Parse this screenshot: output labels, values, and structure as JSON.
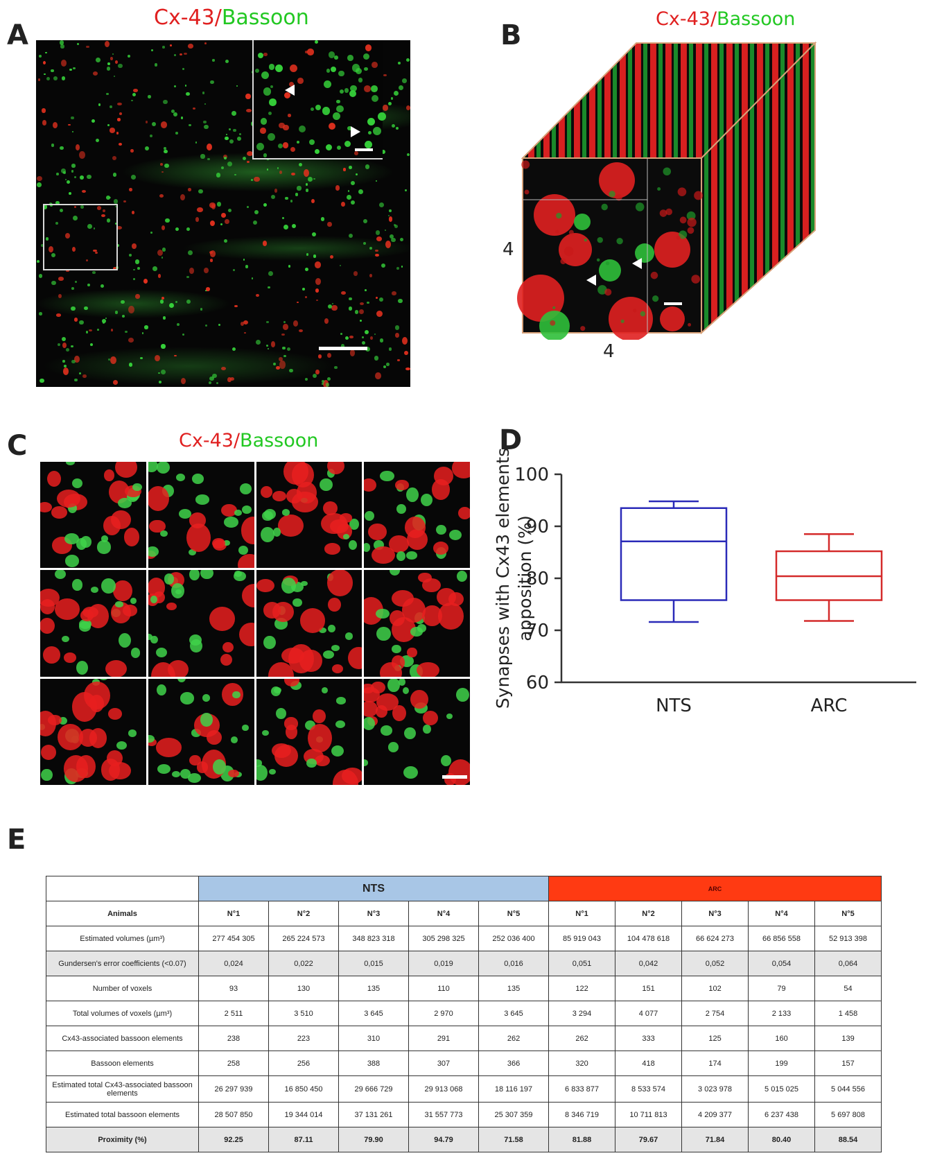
{
  "figure": {
    "panels": {
      "a": {
        "letter": "A",
        "stain_red": "Cx-43",
        "stain_sep": "/",
        "stain_green": "Bassoon"
      },
      "b": {
        "letter": "B",
        "stain_red": "Cx-43",
        "stain_sep": "/",
        "stain_green": "Bassoon",
        "dim_vertical": "4",
        "dim_horizontal": "4"
      },
      "c": {
        "letter": "C",
        "stain_red": "Cx-43",
        "stain_sep": "/",
        "stain_green": "Bassoon"
      },
      "d": {
        "letter": "D"
      },
      "e": {
        "letter": "E"
      }
    },
    "colors": {
      "red_channel": "#e02020",
      "green_channel": "#22c822",
      "nts": "#2a2ab8",
      "arc": "#d42a2a",
      "nts_header": "#a8c6e6",
      "arc_header": "#ff3a12"
    }
  },
  "chart_data": {
    "type": "boxplot",
    "ylabel": "Synapses with Cx43 elements apposition (%)",
    "ylabel_line1": "Synapses with Cx43 elements",
    "ylabel_line2": "apposition (%)",
    "ylim": [
      60,
      100
    ],
    "yticks": [
      "100",
      "90",
      "80",
      "70",
      "60"
    ],
    "categories": [
      "NTS",
      "ARC"
    ],
    "series": [
      {
        "name": "NTS",
        "min": 71.6,
        "q1": 75.8,
        "median": 87.1,
        "q3": 93.5,
        "max": 94.8,
        "color": "#2a2ab8"
      },
      {
        "name": "ARC",
        "min": 71.8,
        "q1": 75.8,
        "median": 80.4,
        "q3": 85.2,
        "max": 88.5,
        "color": "#d42a2a"
      }
    ]
  },
  "table": {
    "groups": [
      "NTS",
      "ARC"
    ],
    "header_label": "Animals",
    "columns": [
      "N°1",
      "N°2",
      "N°3",
      "N°4",
      "N°5",
      "N°1",
      "N°2",
      "N°3",
      "N°4",
      "N°5"
    ],
    "rows": [
      {
        "label": "Estimated volumes (µm³)",
        "values": [
          "277 454 305",
          "265 224 573",
          "348 823 318",
          "305 298 325",
          "252 036 400",
          "85 919 043",
          "104 478 618",
          "66 624 273",
          "66 856 558",
          "52 913 398"
        ]
      },
      {
        "label": "Gundersen's error coefficients (<0.07)",
        "values": [
          "0,024",
          "0,022",
          "0,015",
          "0,019",
          "0,016",
          "0,051",
          "0,042",
          "0,052",
          "0,054",
          "0,064"
        ]
      },
      {
        "label": "Number of voxels",
        "values": [
          "93",
          "130",
          "135",
          "110",
          "135",
          "122",
          "151",
          "102",
          "79",
          "54"
        ]
      },
      {
        "label": "Total volumes of voxels (µm³)",
        "values": [
          "2 511",
          "3 510",
          "3 645",
          "2 970",
          "3 645",
          "3 294",
          "4 077",
          "2 754",
          "2 133",
          "1 458"
        ]
      },
      {
        "label": "Cx43-associated bassoon elements",
        "values": [
          "238",
          "223",
          "310",
          "291",
          "262",
          "262",
          "333",
          "125",
          "160",
          "139"
        ]
      },
      {
        "label": "Bassoon elements",
        "values": [
          "258",
          "256",
          "388",
          "307",
          "366",
          "320",
          "418",
          "174",
          "199",
          "157"
        ]
      },
      {
        "label": "Estimated total Cx43-associated bassoon elements",
        "values": [
          "26 297 939",
          "16 850 450",
          "29 666 729",
          "29 913 068",
          "18 116 197",
          "6 833 877",
          "8 533 574",
          "3 023 978",
          "5 015 025",
          "5 044 556"
        ]
      },
      {
        "label": "Estimated total bassoon elements",
        "values": [
          "28 507 850",
          "19 344 014",
          "37 131 261",
          "31 557 773",
          "25 307 359",
          "8 346 719",
          "10 711 813",
          "4 209 377",
          "6 237 438",
          "5 697 808"
        ]
      },
      {
        "label": "Proximity (%)",
        "values": [
          "92.25",
          "87.11",
          "79.90",
          "94.79",
          "71.58",
          "81.88",
          "79.67",
          "71.84",
          "80.40",
          "88.54"
        ]
      }
    ]
  }
}
